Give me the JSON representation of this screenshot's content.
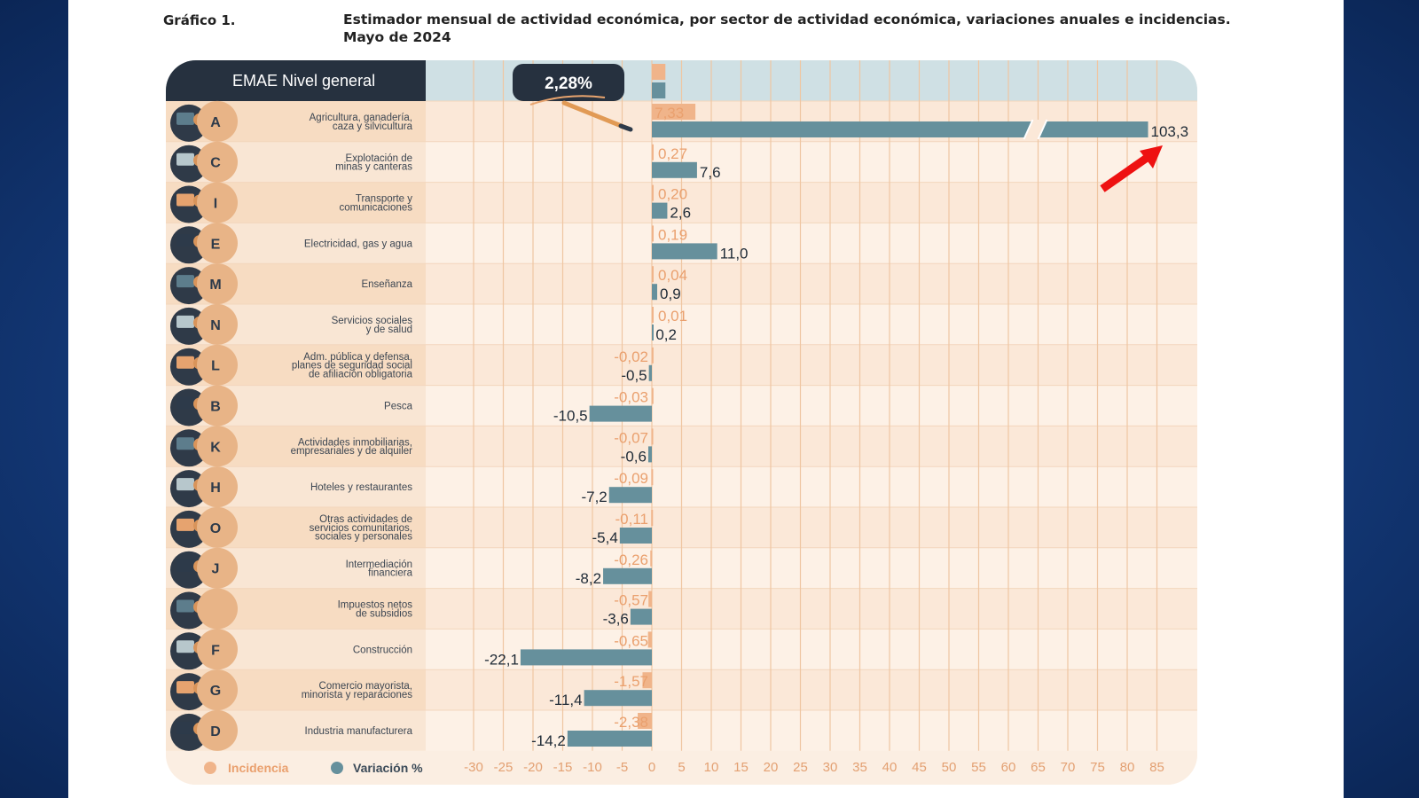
{
  "header": {
    "label": "Gráfico 1.",
    "title": "Estimador mensual de actividad económica, por sector de actividad económica, variaciones anuales e incidencias. Mayo de 2024"
  },
  "total": {
    "label": "EMAE Nivel general",
    "value_label": "2,28%",
    "value": 2.28
  },
  "legend": {
    "incidencia": "Incidencia",
    "variacion": "Variación %"
  },
  "colors": {
    "incidencia": "#f0b48a",
    "variacion": "#66909c",
    "incidencia_text": "#eaa06e",
    "label_panel": "#f4cfae",
    "row_a": "#fbe8d8",
    "row_b": "#fdf1e6",
    "top_band": "#cfe0e4",
    "arrow": "#ee1111"
  },
  "chart_data": {
    "type": "bar",
    "title": "Estimador mensual de actividad económica, por sector de actividad económica, variaciones anuales e incidencias. Mayo de 2024",
    "xlim": [
      -30,
      85
    ],
    "x_ticks": [
      "-30",
      "-25",
      "-20",
      "-15",
      "-10",
      "-5",
      "0",
      "5",
      "10",
      "15",
      "20",
      "25",
      "30",
      "35",
      "40",
      "45",
      "50",
      "55",
      "60",
      "65",
      "70",
      "75",
      "80",
      "85"
    ],
    "axis_break": true,
    "categories": [
      {
        "code": "A",
        "name": [
          "Agricultura, ganadería,",
          "caza y silvicultura"
        ],
        "icon": "agriculture-icon"
      },
      {
        "code": "C",
        "name": [
          "Explotación de",
          "minas y canteras"
        ],
        "icon": "mining-icon"
      },
      {
        "code": "I",
        "name": [
          "Transporte y",
          "comunicaciones"
        ],
        "icon": "transport-icon"
      },
      {
        "code": "E",
        "name": [
          "Electricidad, gas y agua"
        ],
        "icon": "electricity-icon"
      },
      {
        "code": "M",
        "name": [
          "Enseñanza"
        ],
        "icon": "education-icon"
      },
      {
        "code": "N",
        "name": [
          "Servicios sociales",
          "y de salud"
        ],
        "icon": "health-icon"
      },
      {
        "code": "L",
        "name": [
          "Adm. pública y defensa,",
          "planes de seguridad social",
          "de afiliación obligatoria"
        ],
        "icon": "government-icon"
      },
      {
        "code": "B",
        "name": [
          "Pesca"
        ],
        "icon": "fishing-icon"
      },
      {
        "code": "K",
        "name": [
          "Actividades inmobiliarias,",
          "empresariales y de alquiler"
        ],
        "icon": "real-estate-icon"
      },
      {
        "code": "H",
        "name": [
          "Hoteles y restaurantes"
        ],
        "icon": "hotel-icon"
      },
      {
        "code": "O",
        "name": [
          "Otras actividades de",
          "servicios comunitarios,",
          "sociales y personales"
        ],
        "icon": "community-services-icon"
      },
      {
        "code": "J",
        "name": [
          "Intermediación",
          "financiera"
        ],
        "icon": "bank-icon"
      },
      {
        "code": "",
        "name": [
          "Impuestos netos",
          "de subsidios"
        ],
        "icon": "taxes-icon"
      },
      {
        "code": "F",
        "name": [
          "Construcción"
        ],
        "icon": "construction-icon"
      },
      {
        "code": "G",
        "name": [
          "Comercio mayorista,",
          "minorista y reparaciones"
        ],
        "icon": "commerce-icon"
      },
      {
        "code": "D",
        "name": [
          "Industria manufacturera"
        ],
        "icon": "industry-icon"
      }
    ],
    "series": [
      {
        "name": "Incidencia",
        "values": [
          7.33,
          0.27,
          0.2,
          0.19,
          0.04,
          0.01,
          -0.02,
          -0.03,
          -0.07,
          -0.09,
          -0.11,
          -0.26,
          -0.57,
          -0.65,
          -1.57,
          -2.38
        ],
        "labels": [
          "7,33",
          "0,27",
          "0,20",
          "0,19",
          "0,04",
          "0,01",
          "-0,02",
          "-0,03",
          "-0,07",
          "-0,09",
          "-0,11",
          "-0,26",
          "-0,57",
          "-0,65",
          "-1,57",
          "-2,38"
        ]
      },
      {
        "name": "Variación %",
        "values": [
          103.3,
          7.6,
          2.6,
          11.0,
          0.9,
          0.2,
          -0.5,
          -10.5,
          -0.6,
          -7.2,
          -5.4,
          -8.2,
          -3.6,
          -22.1,
          -11.4,
          -14.2
        ],
        "labels": [
          "103,3",
          "7,6",
          "2,6",
          "11,0",
          "0,9",
          "0,2",
          "-0,5",
          "-10,5",
          "-0,6",
          "-7,2",
          "-5,4",
          "-8,2",
          "-3,6",
          "-22,1",
          "-11,4",
          "-14,2"
        ]
      }
    ]
  }
}
